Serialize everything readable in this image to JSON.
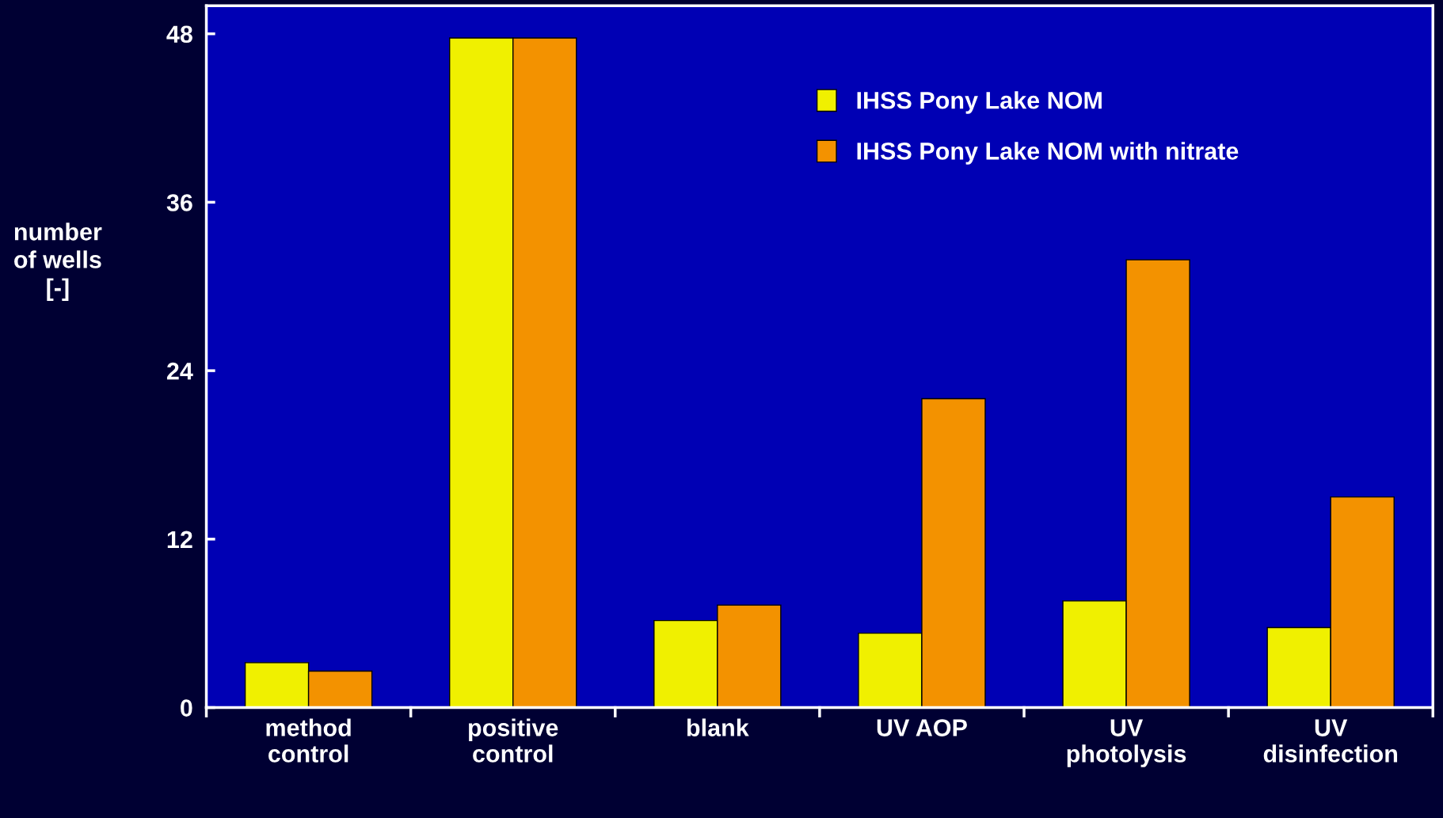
{
  "chart_data": {
    "type": "bar",
    "ylabel": "number\nof wells\n[-]",
    "categories": [
      "method\ncontrol",
      "positive\ncontrol",
      "blank",
      "UV AOP",
      "UV\nphotolysis",
      "UV\ndisinfection"
    ],
    "series": [
      {
        "name": "IHSS Pony Lake NOM",
        "color": "#f0f000",
        "values": [
          3.2,
          47.7,
          6.2,
          5.3,
          7.6,
          5.7
        ]
      },
      {
        "name": "IHSS Pony Lake NOM with nitrate",
        "color": "#f39200",
        "values": [
          2.6,
          47.7,
          7.3,
          22.0,
          31.9,
          15.0
        ]
      }
    ],
    "ylim": [
      0,
      50
    ],
    "yticks": [
      0,
      12,
      24,
      36,
      48
    ],
    "legend": "top right",
    "grid": false
  }
}
